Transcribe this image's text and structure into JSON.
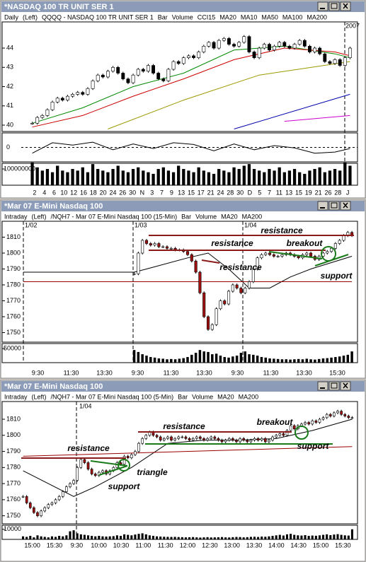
{
  "windows": [
    {
      "title": "*NASDAQ 100 TR UNIT SER 1",
      "legend": [
        {
          "text": "Daily",
          "color": "#000"
        },
        {
          "text": "(Left)",
          "color": "#000"
        },
        {
          "text": "QQQQ - NASDAQ 100 TR UNIT SER 1",
          "color": "#000"
        },
        {
          "text": "Bar",
          "color": "#000"
        },
        {
          "text": "Volume",
          "color": "#000"
        },
        {
          "text": "CCI15",
          "color": "#000"
        },
        {
          "text": "MA20",
          "color": "#cc0000"
        },
        {
          "text": "MA10",
          "color": "#008800"
        },
        {
          "text": "MA50",
          "color": "#999900"
        },
        {
          "text": "MA100",
          "color": "#0000aa"
        },
        {
          "text": "MA200",
          "color": "#cc00cc"
        }
      ],
      "year": "2007",
      "date_labels": [],
      "down_color": "#000000",
      "price": {
        "closes": [
          40.1,
          40.4,
          40.5,
          40.8,
          41.2,
          41.4,
          41.3,
          41.5,
          41.6,
          41.7,
          41.6,
          41.9,
          42.3,
          42.6,
          42.5,
          42.8,
          43.0,
          42.7,
          42.4,
          42.2,
          42.6,
          42.9,
          42.8,
          43.1,
          42.7,
          42.4,
          42.3,
          42.9,
          43.3,
          43.2,
          43.5,
          43.6,
          43.5,
          43.8,
          44.1,
          44.3,
          44.0,
          44.4,
          44.5,
          44.2,
          44.1,
          44.3,
          44.6,
          43.8,
          43.5,
          44.0,
          44.2,
          43.9,
          44.1,
          44.3,
          44.1,
          44.0,
          44.2,
          44.4,
          44.1,
          43.8,
          44.0,
          43.7,
          43.3,
          43.2,
          43.4,
          43.1,
          43.5,
          44.0
        ],
        "ylim": [
          39.67,
          45.36
        ],
        "yticks": [
          40,
          41,
          42,
          43,
          44
        ]
      },
      "ma_lines": [
        {
          "color": "#008800",
          "x": [
            0,
            10,
            20,
            30,
            40,
            50,
            60,
            63
          ],
          "values": [
            40.1,
            40.9,
            42.0,
            42.7,
            43.9,
            44.1,
            43.7,
            43.5
          ]
        },
        {
          "color": "#cc0000",
          "x": [
            0,
            10,
            20,
            30,
            40,
            50,
            60,
            63
          ],
          "values": [
            39.9,
            40.5,
            41.5,
            42.4,
            43.4,
            44.0,
            43.8,
            43.6
          ]
        },
        {
          "color": "#999900",
          "x": [
            15,
            30,
            45,
            63
          ],
          "values": [
            39.8,
            41.3,
            42.6,
            43.3
          ]
        },
        {
          "color": "#0000aa",
          "x": [
            40,
            63
          ],
          "values": [
            39.8,
            41.6
          ]
        },
        {
          "color": "#cc00cc",
          "x": [
            50,
            63
          ],
          "values": [
            40.2,
            40.5
          ]
        }
      ],
      "cci": {
        "x": [
          0,
          4,
          8,
          12,
          16,
          20,
          24,
          28,
          32,
          36,
          40,
          44,
          48,
          52,
          56,
          60,
          63
        ],
        "values": [
          -100,
          80,
          40,
          90,
          -40,
          60,
          -20,
          80,
          50,
          -60,
          60,
          -40,
          30,
          -10,
          -100,
          -80,
          -20
        ],
        "ylim": [
          -250,
          250
        ],
        "yticks": [
          0
        ]
      },
      "volume": {
        "values": [
          140000000.0,
          110000000.0,
          90000000.0,
          100000000.0,
          80000000.0,
          120000000.0,
          90000000.0,
          80000000.0,
          100000000.0,
          90000000.0,
          110000000.0,
          80000000.0,
          130000000.0,
          100000000.0,
          90000000.0,
          80000000.0,
          100000000.0,
          120000000.0,
          90000000.0,
          80000000.0,
          100000000.0,
          110000000.0,
          90000000.0,
          80000000.0,
          70000000.0,
          100000000.0,
          110000000.0,
          90000000.0,
          80000000.0,
          120000000.0,
          100000000.0,
          90000000.0,
          80000000.0,
          110000000.0,
          90000000.0,
          80000000.0,
          70000000.0,
          100000000.0,
          90000000.0,
          80000000.0,
          110000000.0,
          100000000.0,
          120000000.0,
          130000000.0,
          100000000.0,
          90000000.0,
          80000000.0,
          100000000.0,
          90000000.0,
          110000000.0,
          80000000.0,
          90000000.0,
          100000000.0,
          80000000.0,
          70000000.0,
          90000000.0,
          100000000.0,
          110000000.0,
          80000000.0,
          90000000.0,
          100000000.0,
          90000000.0,
          140000000.0,
          120000000.0
        ],
        "ylim": [
          0,
          135000000
        ],
        "yticks": [
          100000000
        ]
      },
      "x_labels": [
        "2",
        "4",
        "6",
        "10",
        "12",
        "16",
        "18",
        "20",
        "24",
        "26",
        "30",
        "N",
        "3",
        "7",
        "9",
        "13",
        "15",
        "17",
        "21",
        "24",
        "28",
        "30",
        "D",
        "5",
        "7",
        "11",
        "13",
        "15",
        "19",
        "21",
        "26",
        "28",
        "J"
      ],
      "annotations": []
    },
    {
      "title": "*Mar 07 E-Mini Nasdaq 100",
      "legend": [
        {
          "text": "Intraday",
          "color": "#000"
        },
        {
          "text": "(Left)",
          "color": "#000"
        },
        {
          "text": "/NQH7 - Mar 07 E-Mini Nasdaq 100 (15-Min)",
          "color": "#000"
        },
        {
          "text": "Bar",
          "color": "#000"
        },
        {
          "text": "Volume",
          "color": "#000"
        },
        {
          "text": "MA20",
          "color": "#000"
        },
        {
          "text": "MA200",
          "color": "#990000"
        }
      ],
      "date_labels": [
        "1/02",
        "1/03",
        "1/04"
      ],
      "down_color": "#a01010",
      "price": {
        "closes": [
          null,
          null,
          null,
          null,
          null,
          null,
          null,
          null,
          null,
          null,
          null,
          null,
          null,
          null,
          null,
          null,
          null,
          null,
          null,
          null,
          null,
          null,
          null,
          null,
          null,
          null,
          null,
          1787,
          1800,
          1808,
          1806,
          1805,
          1806,
          1804,
          1804,
          1803,
          1803,
          1802,
          1802,
          1801,
          1799,
          1795,
          1788,
          1775,
          1760,
          1752,
          1755,
          1765,
          1770,
          1768,
          1776,
          1780,
          1778,
          1775,
          1778,
          1782,
          1790,
          1797,
          1799,
          1800,
          1799,
          1798,
          1798,
          1799,
          1800,
          1799,
          1798,
          1797,
          1799,
          1800,
          1798,
          1796,
          1798,
          1800,
          1801,
          1803,
          1806,
          1808,
          1811,
          1813,
          1811
        ],
        "ylim": [
          1744,
          1820
        ],
        "yticks": [
          1750,
          1760,
          1770,
          1780,
          1790,
          1800,
          1810
        ]
      },
      "ma_lines": [
        {
          "color": "#000000",
          "x": [
            0,
            27,
            30,
            40,
            45,
            50,
            55,
            60,
            65,
            70,
            80
          ],
          "values": [
            1788,
            1788,
            1790,
            1797,
            1800,
            1790,
            1778,
            1778,
            1785,
            1790,
            1798
          ]
        },
        {
          "color": "#990000",
          "x": [
            0,
            80
          ],
          "values": [
            1782,
            1782
          ]
        }
      ],
      "volume": {
        "values": [
          null,
          null,
          null,
          null,
          null,
          null,
          null,
          null,
          null,
          null,
          null,
          null,
          null,
          null,
          null,
          null,
          null,
          null,
          null,
          null,
          null,
          null,
          null,
          null,
          null,
          null,
          null,
          45000,
          38000,
          30000,
          25000,
          20000,
          18000,
          15000,
          14000,
          12000,
          13000,
          12000,
          14000,
          16000,
          20000,
          28000,
          35000,
          45000,
          40000,
          38000,
          30000,
          32000,
          25000,
          20000,
          18000,
          22000,
          25000,
          35000,
          40000,
          30000,
          28000,
          25000,
          20000,
          18000,
          15000,
          14000,
          13000,
          12000,
          12000,
          11000,
          12000,
          13000,
          12000,
          14000,
          12000,
          11000,
          13000,
          15000,
          16000,
          18000,
          20000,
          22000,
          25000,
          28000,
          40000
        ],
        "ylim": [
          0,
          68000
        ],
        "yticks": [
          50000
        ]
      },
      "x_labels": [
        "9:30",
        "11:30",
        "13:30",
        "9:30",
        "11:30",
        "13:30",
        "9:30",
        "11:30",
        "13:30",
        "15:30"
      ],
      "annotations": [
        {
          "text": "resistance",
          "color": "#8b1a1a"
        },
        {
          "text": "resistance",
          "color": "#8b1a1a"
        },
        {
          "text": "resistance",
          "color": "#8b1a1a"
        },
        {
          "text": "breakout",
          "color": "#1a7a1a"
        },
        {
          "text": "support",
          "color": "#1a7a1a"
        }
      ]
    },
    {
      "title": "*Mar 07 E-Mini Nasdaq 100",
      "legend": [
        {
          "text": "Intraday",
          "color": "#000"
        },
        {
          "text": "(Left)",
          "color": "#000"
        },
        {
          "text": "/NQH7 - Mar 07 E-Mini Nasdaq 100 (5-Min)",
          "color": "#000"
        },
        {
          "text": "Bar",
          "color": "#000"
        },
        {
          "text": "Volume",
          "color": "#000"
        },
        {
          "text": "MA20",
          "color": "#000"
        },
        {
          "text": "MA200",
          "color": "#990000"
        }
      ],
      "date_labels": [
        "1/04"
      ],
      "down_color": "#a01010",
      "price": {
        "closes": [
          1762,
          1758,
          1755,
          1752,
          1750,
          1753,
          1755,
          1757,
          1758,
          1760,
          1762,
          1765,
          1768,
          1770,
          1772,
          1780,
          1785,
          1783,
          1779,
          1776,
          1775,
          1777,
          1778,
          1776,
          1778,
          1780,
          1783,
          1782,
          1787,
          1786,
          1788,
          1790,
          1795,
          1798,
          1800,
          1802,
          1800,
          1799,
          1797,
          1798,
          1799,
          1797,
          1798,
          1799,
          1799,
          1798,
          1797,
          1798,
          1799,
          1798,
          1797,
          1798,
          1799,
          1798,
          1797,
          1796,
          1797,
          1798,
          1797,
          1796,
          1798,
          1797,
          1796,
          1797,
          1798,
          1797,
          1798,
          1796,
          1797,
          1799,
          1800,
          1801,
          1800,
          1803,
          1806,
          1804,
          1806,
          1807,
          1808,
          1807,
          1809,
          1808,
          1810,
          1811,
          1813,
          1812,
          1814,
          1815,
          1813,
          1812,
          1811,
          1811
        ],
        "ylim": [
          1745,
          1821
        ],
        "yticks": [
          1750,
          1760,
          1770,
          1780,
          1790,
          1800,
          1810
        ]
      },
      "ma_lines": [
        {
          "color": "#000000",
          "x": [
            0,
            14,
            20,
            30,
            40,
            50,
            60,
            70,
            80,
            91
          ],
          "values": [
            1778,
            1762,
            1768,
            1780,
            1795,
            1797,
            1797,
            1798,
            1803,
            1810
          ]
        },
        {
          "color": "#990000",
          "x": [
            0,
            91
          ],
          "values": [
            1787,
            1793
          ]
        }
      ],
      "volume": {
        "values": [
          3000,
          2500,
          3500,
          2000,
          4000,
          3000,
          2500,
          2000,
          3000,
          2500,
          3500,
          3000,
          4000,
          8000,
          9000,
          6000,
          5000,
          4500,
          4000,
          3500,
          3000,
          3500,
          3000,
          2800,
          3000,
          3200,
          4000,
          3500,
          5000,
          4500,
          4000,
          4800,
          5500,
          6000,
          5000,
          4000,
          3500,
          3000,
          2800,
          2600,
          2500,
          2400,
          2500,
          2300,
          2200,
          2000,
          2100,
          2300,
          2000,
          1800,
          2000,
          2200,
          1900,
          2000,
          2100,
          2300,
          2000,
          1900,
          2200,
          2400,
          2300,
          2000,
          2200,
          2500,
          2600,
          2400,
          2800,
          2600,
          3000,
          3500,
          4000,
          4500,
          3800,
          5000,
          5500,
          4500,
          4000,
          3800,
          4200,
          3500,
          3800,
          3600,
          4000,
          4500,
          5000,
          4200,
          4800,
          5200,
          4500,
          4000,
          3800,
          10000
        ],
        "ylim": [
          0,
          14000
        ],
        "yticks": [
          10000
        ]
      },
      "x_labels": [
        "15:00",
        "15:30",
        "9:30",
        "10:00",
        "10:30",
        "11:00",
        "11:30",
        "12:00",
        "12:30",
        "13:00",
        "13:30",
        "14:00",
        "14:30",
        "15:00",
        "15:30"
      ],
      "annotations": [
        {
          "text": "resistance",
          "color": "#8b1a1a"
        },
        {
          "text": "support",
          "color": "#1a7a1a"
        },
        {
          "text": "triangle",
          "color": "#1a7a1a"
        },
        {
          "text": "resistance",
          "color": "#8b1a1a"
        },
        {
          "text": "breakout",
          "color": "#1a7a1a"
        },
        {
          "text": "support",
          "color": "#1a7a1a"
        }
      ]
    }
  ]
}
